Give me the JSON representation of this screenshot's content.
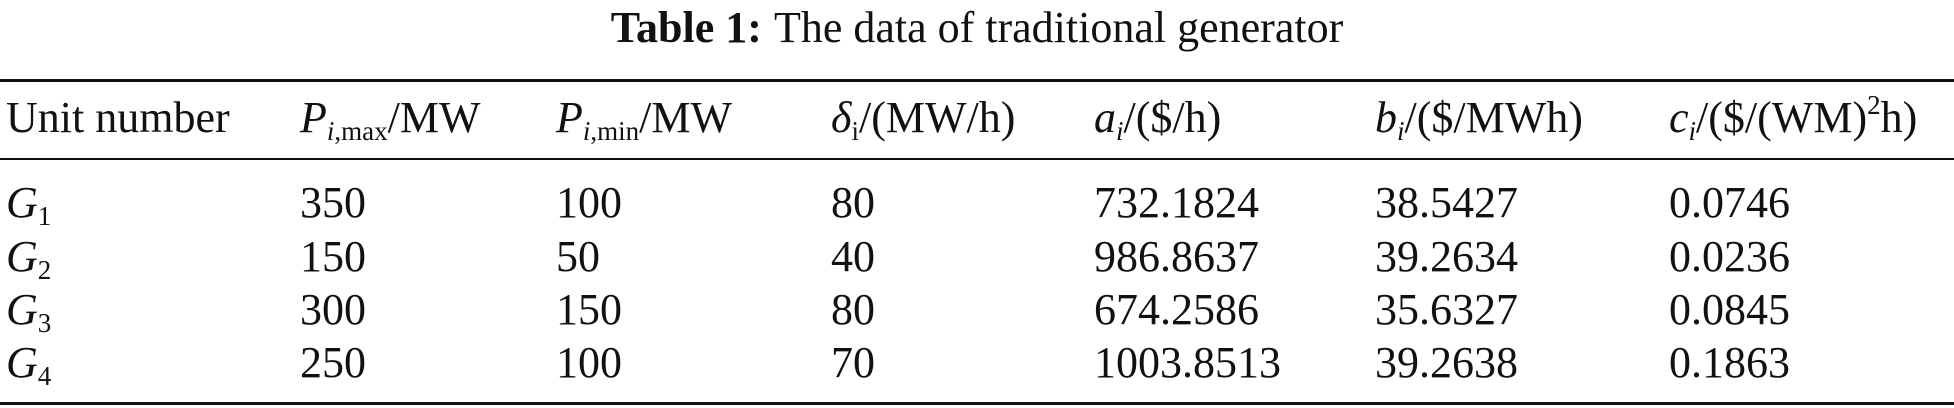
{
  "title": {
    "label": "Table 1:",
    "text": "The data of traditional generator"
  },
  "table": {
    "header": [
      [
        {
          "text": "Unit number",
          "role": "plain"
        }
      ],
      [
        {
          "text": "P",
          "role": "italic"
        },
        {
          "text": "i",
          "role": "sub-italic"
        },
        {
          "text": ",max",
          "role": "sub"
        },
        {
          "text": "/MW",
          "role": "plain"
        }
      ],
      [
        {
          "text": "P",
          "role": "italic"
        },
        {
          "text": "i",
          "role": "sub-italic"
        },
        {
          "text": ",min",
          "role": "sub"
        },
        {
          "text": "/MW",
          "role": "plain"
        }
      ],
      [
        {
          "text": "δ",
          "role": "italic"
        },
        {
          "text": "i",
          "role": "sub"
        },
        {
          "text": "/(MW/h)",
          "role": "plain"
        }
      ],
      [
        {
          "text": "a",
          "role": "italic"
        },
        {
          "text": "i",
          "role": "sub-italic"
        },
        {
          "text": "/($/h)",
          "role": "plain"
        }
      ],
      [
        {
          "text": "b",
          "role": "italic"
        },
        {
          "text": "i",
          "role": "sub-italic"
        },
        {
          "text": "/($/MWh)",
          "role": "plain"
        }
      ],
      [
        {
          "text": "c",
          "role": "italic"
        },
        {
          "text": "i",
          "role": "sub-italic"
        },
        {
          "text": "/($/(WM)",
          "role": "plain"
        },
        {
          "text": "2",
          "role": "sup"
        },
        {
          "text": "h)",
          "role": "plain"
        }
      ]
    ],
    "rows": [
      [
        [
          {
            "text": "G",
            "role": "italic"
          },
          {
            "text": "1",
            "role": "sub"
          }
        ],
        "350",
        "100",
        "80",
        "732.1824",
        "38.5427",
        "0.0746"
      ],
      [
        [
          {
            "text": "G",
            "role": "italic"
          },
          {
            "text": "2",
            "role": "sub"
          }
        ],
        "150",
        "50",
        "40",
        "986.8637",
        "39.2634",
        "0.0236"
      ],
      [
        [
          {
            "text": "G",
            "role": "italic"
          },
          {
            "text": "3",
            "role": "sub"
          }
        ],
        "300",
        "150",
        "80",
        "674.2586",
        "35.6327",
        "0.0845"
      ],
      [
        [
          {
            "text": "G",
            "role": "italic"
          },
          {
            "text": "4",
            "role": "sub"
          }
        ],
        "250",
        "100",
        "70",
        "1003.8513",
        "39.2638",
        "0.1863"
      ]
    ]
  }
}
